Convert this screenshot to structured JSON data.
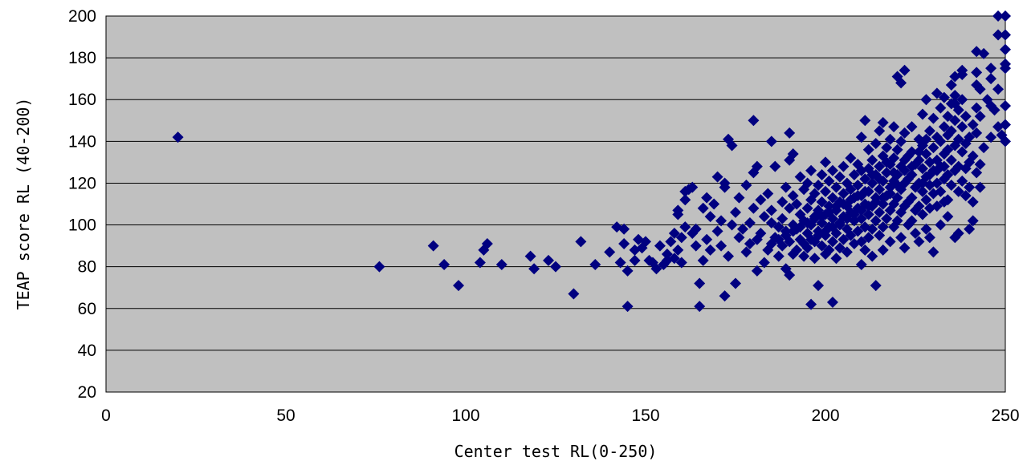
{
  "chart_data": {
    "type": "scatter",
    "title": "",
    "xlabel": "Center test RL(0-250)",
    "ylabel": "TEAP score RL (40-200)",
    "xlim": [
      0,
      250
    ],
    "ylim": [
      20,
      200
    ],
    "x_ticks": [
      0,
      50,
      100,
      150,
      200,
      250
    ],
    "y_ticks": [
      20,
      40,
      60,
      80,
      100,
      120,
      140,
      160,
      180,
      200
    ],
    "x_tick_labels": [
      "0",
      "50",
      "100",
      "150",
      "200",
      "250"
    ],
    "y_tick_labels": [
      "20",
      "40",
      "60",
      "80",
      "100",
      "120",
      "140",
      "160",
      "180",
      "200"
    ],
    "grid": "horizontal",
    "plot_background": "#c0c0c0",
    "marker": "diamond",
    "marker_color": "#000080",
    "points": [
      [
        20,
        142
      ],
      [
        76,
        80
      ],
      [
        91,
        90
      ],
      [
        94,
        81
      ],
      [
        98,
        71
      ],
      [
        104,
        82
      ],
      [
        105,
        88
      ],
      [
        106,
        91
      ],
      [
        110,
        81
      ],
      [
        118,
        85
      ],
      [
        119,
        79
      ],
      [
        123,
        83
      ],
      [
        125,
        80
      ],
      [
        130,
        67
      ],
      [
        132,
        92
      ],
      [
        136,
        81
      ],
      [
        140,
        87
      ],
      [
        142,
        99
      ],
      [
        143,
        82
      ],
      [
        144,
        91
      ],
      [
        144,
        98
      ],
      [
        145,
        61
      ],
      [
        145,
        78
      ],
      [
        147,
        88
      ],
      [
        147,
        83
      ],
      [
        148,
        93
      ],
      [
        149,
        89
      ],
      [
        150,
        92
      ],
      [
        151,
        83
      ],
      [
        152,
        82
      ],
      [
        153,
        79
      ],
      [
        154,
        90
      ],
      [
        155,
        81
      ],
      [
        156,
        86
      ],
      [
        156,
        83
      ],
      [
        157,
        92
      ],
      [
        158,
        84
      ],
      [
        158,
        96
      ],
      [
        159,
        105
      ],
      [
        159,
        107
      ],
      [
        159,
        88
      ],
      [
        160,
        82
      ],
      [
        160,
        94
      ],
      [
        161,
        99
      ],
      [
        161,
        112
      ],
      [
        161,
        116
      ],
      [
        162,
        117
      ],
      [
        163,
        118
      ],
      [
        163,
        96
      ],
      [
        164,
        90
      ],
      [
        164,
        98
      ],
      [
        165,
        61
      ],
      [
        165,
        72
      ],
      [
        166,
        83
      ],
      [
        166,
        108
      ],
      [
        167,
        113
      ],
      [
        167,
        93
      ],
      [
        168,
        88
      ],
      [
        168,
        104
      ],
      [
        169,
        110
      ],
      [
        170,
        123
      ],
      [
        170,
        97
      ],
      [
        171,
        102
      ],
      [
        171,
        90
      ],
      [
        172,
        118
      ],
      [
        172,
        120
      ],
      [
        172,
        66
      ],
      [
        173,
        141
      ],
      [
        173,
        85
      ],
      [
        174,
        138
      ],
      [
        174,
        100
      ],
      [
        175,
        106
      ],
      [
        175,
        72
      ],
      [
        176,
        113
      ],
      [
        176,
        94
      ],
      [
        177,
        98
      ],
      [
        178,
        119
      ],
      [
        178,
        87
      ],
      [
        179,
        101
      ],
      [
        179,
        91
      ],
      [
        180,
        150
      ],
      [
        180,
        125
      ],
      [
        180,
        108
      ],
      [
        181,
        128
      ],
      [
        181,
        93
      ],
      [
        181,
        78
      ],
      [
        182,
        112
      ],
      [
        182,
        96
      ],
      [
        183,
        104
      ],
      [
        183,
        82
      ],
      [
        184,
        115
      ],
      [
        184,
        88
      ],
      [
        185,
        140
      ],
      [
        185,
        107
      ],
      [
        185,
        101
      ],
      [
        186,
        94
      ],
      [
        186,
        128
      ],
      [
        187,
        99
      ],
      [
        187,
        85
      ],
      [
        188,
        111
      ],
      [
        188,
        103
      ],
      [
        188,
        90
      ],
      [
        189,
        118
      ],
      [
        189,
        97
      ],
      [
        189,
        79
      ],
      [
        190,
        144
      ],
      [
        190,
        131
      ],
      [
        190,
        108
      ],
      [
        190,
        92
      ],
      [
        190,
        76
      ],
      [
        191,
        134
      ],
      [
        191,
        114
      ],
      [
        191,
        100
      ],
      [
        191,
        86
      ],
      [
        192,
        110
      ],
      [
        192,
        98
      ],
      [
        192,
        88
      ],
      [
        193,
        123
      ],
      [
        193,
        105
      ],
      [
        193,
        93
      ],
      [
        194,
        117
      ],
      [
        194,
        102
      ],
      [
        194,
        85
      ],
      [
        195,
        120
      ],
      [
        195,
        108
      ],
      [
        195,
        96
      ],
      [
        195,
        89
      ],
      [
        196,
        126
      ],
      [
        196,
        112
      ],
      [
        196,
        100
      ],
      [
        196,
        62
      ],
      [
        197,
        115
      ],
      [
        197,
        104
      ],
      [
        197,
        92
      ],
      [
        197,
        84
      ],
      [
        198,
        119
      ],
      [
        198,
        107
      ],
      [
        198,
        97
      ],
      [
        198,
        71
      ],
      [
        199,
        124
      ],
      [
        199,
        111
      ],
      [
        199,
        101
      ],
      [
        199,
        90
      ],
      [
        200,
        130
      ],
      [
        200,
        116
      ],
      [
        200,
        105
      ],
      [
        200,
        95
      ],
      [
        200,
        86
      ],
      [
        201,
        121
      ],
      [
        201,
        109
      ],
      [
        201,
        99
      ],
      [
        201,
        88
      ],
      [
        202,
        126
      ],
      [
        202,
        113
      ],
      [
        202,
        103
      ],
      [
        202,
        92
      ],
      [
        202,
        63
      ],
      [
        203,
        118
      ],
      [
        203,
        107
      ],
      [
        203,
        96
      ],
      [
        203,
        84
      ],
      [
        204,
        123
      ],
      [
        204,
        111
      ],
      [
        204,
        100
      ],
      [
        204,
        89
      ],
      [
        205,
        128
      ],
      [
        205,
        115
      ],
      [
        205,
        104
      ],
      [
        205,
        93
      ],
      [
        206,
        120
      ],
      [
        206,
        109
      ],
      [
        206,
        98
      ],
      [
        206,
        87
      ],
      [
        207,
        132
      ],
      [
        207,
        117
      ],
      [
        207,
        106
      ],
      [
        207,
        95
      ],
      [
        208,
        124
      ],
      [
        208,
        113
      ],
      [
        208,
        102
      ],
      [
        208,
        91
      ],
      [
        209,
        129
      ],
      [
        209,
        119
      ],
      [
        209,
        108
      ],
      [
        209,
        97
      ],
      [
        210,
        142
      ],
      [
        210,
        126
      ],
      [
        210,
        114
      ],
      [
        210,
        103
      ],
      [
        210,
        92
      ],
      [
        210,
        81
      ],
      [
        211,
        150
      ],
      [
        211,
        122
      ],
      [
        211,
        110
      ],
      [
        211,
        99
      ],
      [
        211,
        88
      ],
      [
        212,
        136
      ],
      [
        212,
        127
      ],
      [
        212,
        116
      ],
      [
        212,
        105
      ],
      [
        212,
        94
      ],
      [
        213,
        131
      ],
      [
        213,
        120
      ],
      [
        213,
        109
      ],
      [
        213,
        98
      ],
      [
        213,
        85
      ],
      [
        214,
        139
      ],
      [
        214,
        124
      ],
      [
        214,
        113
      ],
      [
        214,
        102
      ],
      [
        214,
        71
      ],
      [
        215,
        145
      ],
      [
        215,
        128
      ],
      [
        215,
        117
      ],
      [
        215,
        106
      ],
      [
        215,
        95
      ],
      [
        216,
        149
      ],
      [
        216,
        133
      ],
      [
        216,
        121
      ],
      [
        216,
        110
      ],
      [
        216,
        99
      ],
      [
        216,
        88
      ],
      [
        217,
        137
      ],
      [
        217,
        125
      ],
      [
        217,
        114
      ],
      [
        217,
        103
      ],
      [
        218,
        141
      ],
      [
        218,
        129
      ],
      [
        218,
        118
      ],
      [
        218,
        107
      ],
      [
        218,
        92
      ],
      [
        219,
        147
      ],
      [
        219,
        132
      ],
      [
        219,
        121
      ],
      [
        219,
        110
      ],
      [
        219,
        99
      ],
      [
        220,
        171
      ],
      [
        220,
        136
      ],
      [
        220,
        124
      ],
      [
        220,
        113
      ],
      [
        220,
        102
      ],
      [
        221,
        168
      ],
      [
        221,
        140
      ],
      [
        221,
        128
      ],
      [
        221,
        117
      ],
      [
        221,
        106
      ],
      [
        221,
        94
      ],
      [
        222,
        174
      ],
      [
        222,
        144
      ],
      [
        222,
        131
      ],
      [
        222,
        120
      ],
      [
        222,
        109
      ],
      [
        222,
        89
      ],
      [
        223,
        133
      ],
      [
        223,
        122
      ],
      [
        223,
        111
      ],
      [
        223,
        100
      ],
      [
        224,
        147
      ],
      [
        224,
        135
      ],
      [
        224,
        124
      ],
      [
        224,
        113
      ],
      [
        224,
        102
      ],
      [
        225,
        129
      ],
      [
        225,
        118
      ],
      [
        225,
        107
      ],
      [
        225,
        96
      ],
      [
        226,
        141
      ],
      [
        226,
        131
      ],
      [
        226,
        120
      ],
      [
        226,
        109
      ],
      [
        226,
        92
      ],
      [
        227,
        153
      ],
      [
        227,
        138
      ],
      [
        227,
        127
      ],
      [
        227,
        116
      ],
      [
        227,
        105
      ],
      [
        228,
        160
      ],
      [
        228,
        134
      ],
      [
        228,
        123
      ],
      [
        228,
        112
      ],
      [
        228,
        98
      ],
      [
        229,
        145
      ],
      [
        229,
        130
      ],
      [
        229,
        119
      ],
      [
        229,
        108
      ],
      [
        229,
        94
      ],
      [
        230,
        151
      ],
      [
        230,
        137
      ],
      [
        230,
        126
      ],
      [
        230,
        115
      ],
      [
        230,
        87
      ],
      [
        231,
        163
      ],
      [
        231,
        142
      ],
      [
        231,
        131
      ],
      [
        231,
        120
      ],
      [
        231,
        109
      ],
      [
        232,
        156
      ],
      [
        232,
        140
      ],
      [
        232,
        128
      ],
      [
        232,
        116
      ],
      [
        232,
        100
      ],
      [
        233,
        161
      ],
      [
        233,
        147
      ],
      [
        233,
        134
      ],
      [
        233,
        122
      ],
      [
        233,
        111
      ],
      [
        234,
        152
      ],
      [
        234,
        136
      ],
      [
        234,
        124
      ],
      [
        234,
        112
      ],
      [
        234,
        104
      ],
      [
        235,
        167
      ],
      [
        235,
        158
      ],
      [
        235,
        145
      ],
      [
        235,
        131
      ],
      [
        235,
        119
      ],
      [
        236,
        171
      ],
      [
        236,
        162
      ],
      [
        236,
        150
      ],
      [
        236,
        138
      ],
      [
        236,
        126
      ],
      [
        236,
        94
      ],
      [
        237,
        155
      ],
      [
        237,
        141
      ],
      [
        237,
        128
      ],
      [
        237,
        116
      ],
      [
        237,
        96
      ],
      [
        238,
        172
      ],
      [
        238,
        174
      ],
      [
        238,
        160
      ],
      [
        238,
        147
      ],
      [
        238,
        135
      ],
      [
        238,
        121
      ],
      [
        239,
        152
      ],
      [
        239,
        139
      ],
      [
        239,
        127
      ],
      [
        239,
        114
      ],
      [
        240,
        142
      ],
      [
        240,
        130
      ],
      [
        240,
        118
      ],
      [
        240,
        98
      ],
      [
        241,
        148
      ],
      [
        241,
        133
      ],
      [
        241,
        111
      ],
      [
        241,
        102
      ],
      [
        242,
        183
      ],
      [
        242,
        173
      ],
      [
        242,
        167
      ],
      [
        242,
        156
      ],
      [
        242,
        144
      ],
      [
        242,
        125
      ],
      [
        243,
        165
      ],
      [
        243,
        152
      ],
      [
        243,
        129
      ],
      [
        243,
        118
      ],
      [
        244,
        182
      ],
      [
        244,
        137
      ],
      [
        245,
        160
      ],
      [
        246,
        175
      ],
      [
        246,
        170
      ],
      [
        246,
        157
      ],
      [
        246,
        142
      ],
      [
        247,
        155
      ],
      [
        248,
        200
      ],
      [
        248,
        191
      ],
      [
        248,
        165
      ],
      [
        248,
        147
      ],
      [
        249,
        143
      ],
      [
        250,
        200
      ],
      [
        250,
        191
      ],
      [
        250,
        184
      ],
      [
        250,
        177
      ],
      [
        250,
        175
      ],
      [
        250,
        157
      ],
      [
        250,
        148
      ],
      [
        250,
        140
      ],
      [
        236,
        158
      ],
      [
        234,
        143
      ],
      [
        228,
        141
      ],
      [
        226,
        135
      ],
      [
        224,
        128
      ],
      [
        222,
        126
      ],
      [
        219,
        125
      ],
      [
        217,
        130
      ],
      [
        215,
        122
      ],
      [
        213,
        124
      ],
      [
        211,
        116
      ],
      [
        209,
        114
      ],
      [
        207,
        112
      ],
      [
        205,
        110
      ],
      [
        203,
        109
      ],
      [
        201,
        106
      ],
      [
        199,
        104
      ],
      [
        197,
        103
      ],
      [
        195,
        101
      ],
      [
        193,
        99
      ],
      [
        191,
        97
      ],
      [
        189,
        95
      ],
      [
        187,
        93
      ],
      [
        185,
        91
      ],
      [
        227,
        120
      ],
      [
        229,
        124
      ],
      [
        231,
        126
      ],
      [
        233,
        128
      ],
      [
        220,
        119
      ],
      [
        218,
        115
      ],
      [
        216,
        113
      ],
      [
        214,
        111
      ],
      [
        212,
        109
      ],
      [
        210,
        107
      ],
      [
        208,
        105
      ],
      [
        206,
        103
      ],
      [
        204,
        101
      ],
      [
        202,
        99
      ],
      [
        200,
        97
      ],
      [
        198,
        95
      ],
      [
        196,
        93
      ],
      [
        194,
        91
      ]
    ]
  }
}
